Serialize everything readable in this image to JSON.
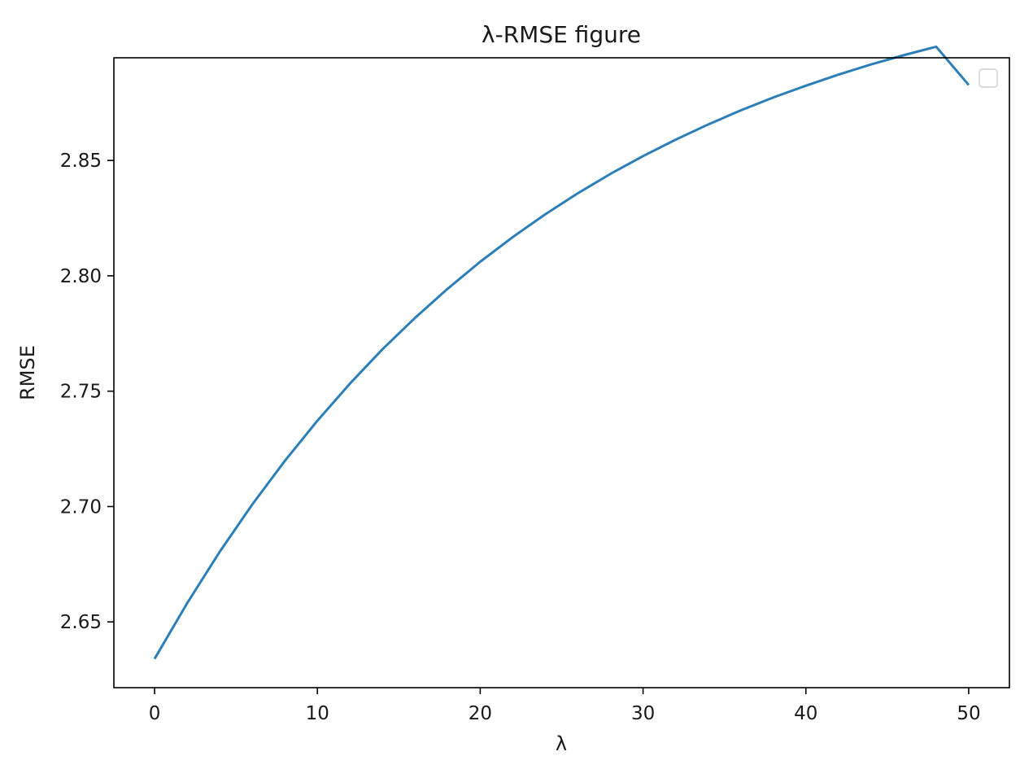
{
  "chart_data": {
    "type": "line",
    "title": "λ-RMSE figure",
    "xlabel": "λ",
    "ylabel": "RMSE",
    "xlim": [
      -2.5,
      52.5
    ],
    "ylim": [
      2.6215,
      2.8945
    ],
    "x_ticks": [
      0,
      10,
      20,
      30,
      40,
      50
    ],
    "x_tick_labels": [
      "0",
      "10",
      "20",
      "30",
      "40",
      "50"
    ],
    "y_ticks": [
      2.65,
      2.7,
      2.75,
      2.8,
      2.85
    ],
    "y_tick_labels": [
      "2.65",
      "2.70",
      "2.75",
      "2.80",
      "2.85"
    ],
    "grid": false,
    "legend": {
      "placement": "top-right",
      "entries": []
    },
    "series": [
      {
        "color": "#2c7fb8",
        "x": [
          0,
          2,
          4,
          6,
          8,
          10,
          12,
          14,
          16,
          18,
          20,
          22,
          24,
          26,
          28,
          30,
          32,
          34,
          36,
          38,
          40,
          42,
          44,
          46,
          48,
          50
        ],
        "y": [
          2.634,
          2.6581,
          2.6804,
          2.7009,
          2.7198,
          2.7372,
          2.7533,
          2.7682,
          2.7818,
          2.7944,
          2.8061,
          2.8168,
          2.8267,
          2.8358,
          2.8442,
          2.8519,
          2.859,
          2.8656,
          2.8717,
          2.8773,
          2.8824,
          2.8872,
          2.8916,
          2.8956,
          2.8993,
          2.8827
        ]
      }
    ]
  }
}
